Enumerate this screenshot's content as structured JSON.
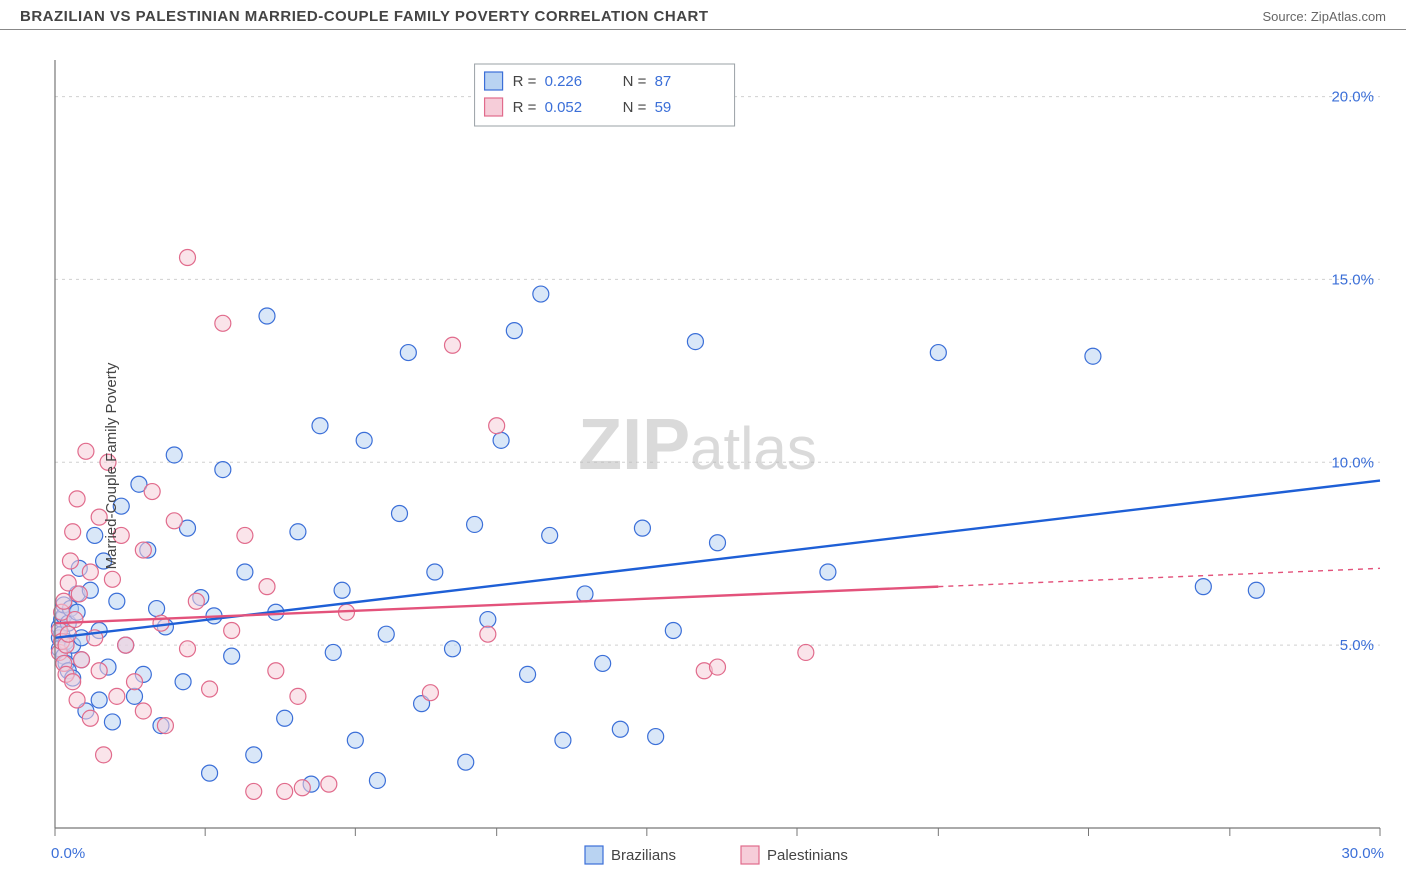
{
  "header": {
    "title": "BRAZILIAN VS PALESTINIAN MARRIED-COUPLE FAMILY POVERTY CORRELATION CHART",
    "source": "Source: ZipAtlas.com"
  },
  "chart": {
    "type": "scatter",
    "background_color": "#ffffff",
    "grid_color": "#d0d0d0",
    "axis_color": "#777777",
    "tick_color": "#777777",
    "value_color": "#3b6fd8",
    "ylabel": "Married-Couple Family Poverty",
    "xlim": [
      0,
      30
    ],
    "ylim": [
      0,
      21
    ],
    "x_ticks": [
      0,
      3.4,
      6.8,
      10.0,
      13.4,
      16.8,
      20.0,
      23.4,
      26.6,
      30.0
    ],
    "x_tick_labels": {
      "0": "0.0%",
      "30": "30.0%"
    },
    "y_gridlines": [
      5,
      10,
      15,
      20
    ],
    "y_tick_labels": {
      "5": "5.0%",
      "10": "10.0%",
      "15": "15.0%",
      "20": "20.0%"
    },
    "marker_radius": 8,
    "marker_stroke_width": 1.2,
    "trend_line_width": 2.4,
    "watermark": {
      "prefix": "ZIP",
      "suffix": "atlas"
    },
    "legend_top": {
      "rows": [
        {
          "swatch_fill": "#b9d3f2",
          "swatch_stroke": "#3b6fd8",
          "r_label": "R =",
          "r_value": "0.226",
          "n_label": "N =",
          "n_value": "87"
        },
        {
          "swatch_fill": "#f6cdd9",
          "swatch_stroke": "#e16b8c",
          "r_label": "R =",
          "r_value": "0.052",
          "n_label": "N =",
          "n_value": "59"
        }
      ]
    },
    "legend_bottom": [
      {
        "swatch_fill": "#b9d3f2",
        "swatch_stroke": "#3b6fd8",
        "label": "Brazilians"
      },
      {
        "swatch_fill": "#f6cdd9",
        "swatch_stroke": "#e16b8c",
        "label": "Palestinians"
      }
    ],
    "series": [
      {
        "name": "Brazilians",
        "fill": "#b9d3f2",
        "stroke": "#3b6fd8",
        "fill_opacity": 0.55,
        "trend": {
          "x1": 0,
          "y1": 5.2,
          "x2": 30,
          "y2": 9.5,
          "color": "#1e5fd6",
          "dash": "none"
        },
        "points": [
          [
            0.1,
            5.5
          ],
          [
            0.1,
            5.2
          ],
          [
            0.1,
            4.9
          ],
          [
            0.15,
            5.7
          ],
          [
            0.15,
            5.3
          ],
          [
            0.2,
            4.7
          ],
          [
            0.2,
            5.8
          ],
          [
            0.2,
            6.1
          ],
          [
            0.25,
            5.1
          ],
          [
            0.25,
            4.5
          ],
          [
            0.3,
            5.6
          ],
          [
            0.3,
            4.3
          ],
          [
            0.35,
            6.0
          ],
          [
            0.4,
            5.0
          ],
          [
            0.4,
            4.1
          ],
          [
            0.5,
            6.4
          ],
          [
            0.5,
            5.9
          ],
          [
            0.55,
            7.1
          ],
          [
            0.6,
            4.6
          ],
          [
            0.6,
            5.2
          ],
          [
            0.7,
            3.2
          ],
          [
            0.8,
            6.5
          ],
          [
            0.9,
            8.0
          ],
          [
            1.0,
            3.5
          ],
          [
            1.0,
            5.4
          ],
          [
            1.1,
            7.3
          ],
          [
            1.2,
            4.4
          ],
          [
            1.3,
            2.9
          ],
          [
            1.4,
            6.2
          ],
          [
            1.5,
            8.8
          ],
          [
            1.6,
            5.0
          ],
          [
            1.8,
            3.6
          ],
          [
            1.9,
            9.4
          ],
          [
            2.0,
            4.2
          ],
          [
            2.1,
            7.6
          ],
          [
            2.3,
            6.0
          ],
          [
            2.4,
            2.8
          ],
          [
            2.5,
            5.5
          ],
          [
            2.7,
            10.2
          ],
          [
            2.9,
            4.0
          ],
          [
            3.0,
            8.2
          ],
          [
            3.3,
            6.3
          ],
          [
            3.5,
            1.5
          ],
          [
            3.6,
            5.8
          ],
          [
            3.8,
            9.8
          ],
          [
            4.0,
            4.7
          ],
          [
            4.3,
            7.0
          ],
          [
            4.5,
            2.0
          ],
          [
            4.8,
            14.0
          ],
          [
            5.0,
            5.9
          ],
          [
            5.2,
            3.0
          ],
          [
            5.5,
            8.1
          ],
          [
            5.8,
            1.2
          ],
          [
            6.0,
            11.0
          ],
          [
            6.3,
            4.8
          ],
          [
            6.5,
            6.5
          ],
          [
            6.8,
            2.4
          ],
          [
            7.0,
            10.6
          ],
          [
            7.3,
            1.3
          ],
          [
            7.5,
            5.3
          ],
          [
            7.8,
            8.6
          ],
          [
            8.0,
            13.0
          ],
          [
            8.3,
            3.4
          ],
          [
            8.6,
            7.0
          ],
          [
            9.0,
            4.9
          ],
          [
            9.3,
            1.8
          ],
          [
            9.5,
            8.3
          ],
          [
            9.8,
            5.7
          ],
          [
            10.1,
            10.6
          ],
          [
            10.4,
            13.6
          ],
          [
            10.7,
            4.2
          ],
          [
            11.0,
            14.6
          ],
          [
            11.2,
            8.0
          ],
          [
            11.5,
            2.4
          ],
          [
            12.0,
            6.4
          ],
          [
            12.4,
            4.5
          ],
          [
            12.8,
            2.7
          ],
          [
            13.3,
            8.2
          ],
          [
            13.6,
            2.5
          ],
          [
            14.0,
            5.4
          ],
          [
            14.5,
            13.3
          ],
          [
            15.0,
            7.8
          ],
          [
            17.5,
            7.0
          ],
          [
            20.0,
            13.0
          ],
          [
            23.5,
            12.9
          ],
          [
            26.0,
            6.6
          ],
          [
            27.2,
            6.5
          ]
        ]
      },
      {
        "name": "Palestinians",
        "fill": "#f6cdd9",
        "stroke": "#e16b8c",
        "fill_opacity": 0.55,
        "trend": {
          "x1": 0,
          "y1": 5.6,
          "x2": 20,
          "y2": 6.6,
          "color": "#e3527b",
          "dash": "none",
          "ext": {
            "x1": 20,
            "y1": 6.6,
            "x2": 30,
            "y2": 7.1,
            "dash": "5,5"
          }
        },
        "points": [
          [
            0.1,
            5.4
          ],
          [
            0.1,
            4.8
          ],
          [
            0.15,
            5.1
          ],
          [
            0.15,
            5.9
          ],
          [
            0.2,
            4.5
          ],
          [
            0.2,
            6.2
          ],
          [
            0.25,
            5.0
          ],
          [
            0.25,
            4.2
          ],
          [
            0.3,
            6.7
          ],
          [
            0.3,
            5.3
          ],
          [
            0.35,
            7.3
          ],
          [
            0.4,
            4.0
          ],
          [
            0.4,
            8.1
          ],
          [
            0.45,
            5.7
          ],
          [
            0.5,
            3.5
          ],
          [
            0.5,
            9.0
          ],
          [
            0.55,
            6.4
          ],
          [
            0.6,
            4.6
          ],
          [
            0.7,
            10.3
          ],
          [
            0.8,
            3.0
          ],
          [
            0.8,
            7.0
          ],
          [
            0.9,
            5.2
          ],
          [
            1.0,
            8.5
          ],
          [
            1.0,
            4.3
          ],
          [
            1.1,
            2.0
          ],
          [
            1.2,
            10.0
          ],
          [
            1.3,
            6.8
          ],
          [
            1.4,
            3.6
          ],
          [
            1.5,
            8.0
          ],
          [
            1.6,
            5.0
          ],
          [
            1.8,
            4.0
          ],
          [
            2.0,
            7.6
          ],
          [
            2.0,
            3.2
          ],
          [
            2.2,
            9.2
          ],
          [
            2.4,
            5.6
          ],
          [
            2.5,
            2.8
          ],
          [
            2.7,
            8.4
          ],
          [
            3.0,
            4.9
          ],
          [
            3.0,
            15.6
          ],
          [
            3.2,
            6.2
          ],
          [
            3.5,
            3.8
          ],
          [
            3.8,
            13.8
          ],
          [
            4.0,
            5.4
          ],
          [
            4.3,
            8.0
          ],
          [
            4.5,
            1.0
          ],
          [
            4.8,
            6.6
          ],
          [
            5.0,
            4.3
          ],
          [
            5.2,
            1.0
          ],
          [
            5.5,
            3.6
          ],
          [
            5.6,
            1.1
          ],
          [
            6.2,
            1.2
          ],
          [
            6.6,
            5.9
          ],
          [
            8.5,
            3.7
          ],
          [
            9.0,
            13.2
          ],
          [
            9.8,
            5.3
          ],
          [
            10.0,
            11.0
          ],
          [
            14.7,
            4.3
          ],
          [
            15.0,
            4.4
          ],
          [
            17.0,
            4.8
          ]
        ]
      }
    ]
  }
}
